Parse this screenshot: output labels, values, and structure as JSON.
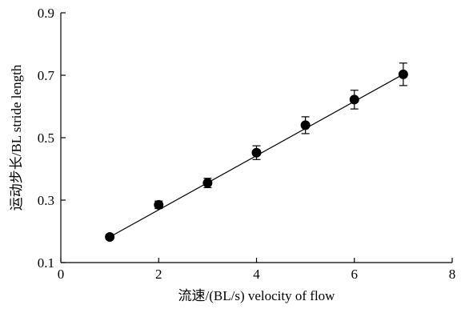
{
  "chart_data": {
    "type": "scatter",
    "title": "",
    "xlabel": "流速/(BL/s) velocity of flow",
    "ylabel": "运动步长/BL stride length",
    "xlim": [
      0,
      8
    ],
    "ylim": [
      0.1,
      0.9
    ],
    "xticks": [
      0,
      2,
      4,
      6,
      8
    ],
    "xtick_labels": [
      "0",
      "2",
      "4",
      "6",
      "8"
    ],
    "yticks": [
      0.1,
      0.3,
      0.5,
      0.7,
      0.9
    ],
    "ytick_labels": [
      "0.1",
      "0.3",
      "0.5",
      "0.7",
      "0.9"
    ],
    "grid": false,
    "legend": "none",
    "marker_color": "#000000",
    "series": [
      {
        "x": [
          1,
          2,
          3,
          4,
          5,
          6,
          7
        ],
        "y": [
          0.182,
          0.285,
          0.355,
          0.452,
          0.54,
          0.622,
          0.703
        ],
        "error": [
          0.0,
          0.012,
          0.015,
          0.022,
          0.027,
          0.03,
          0.036
        ]
      }
    ],
    "fit_line": {
      "x": [
        1,
        7
      ],
      "y": [
        0.182,
        0.703
      ]
    }
  }
}
